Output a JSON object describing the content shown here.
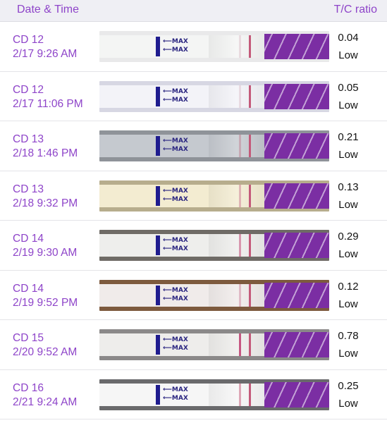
{
  "header": {
    "date_time": "Date & Time",
    "tc_ratio": "T/C ratio"
  },
  "max_label": "⟵MAX",
  "colors": {
    "accent": "#8e44c9",
    "handle": "#7b2ea3",
    "bar": "#1f1c8f"
  },
  "rows": [
    {
      "cd": "CD 12",
      "datetime": "2/17 9:26 AM",
      "ratio": "0.04",
      "level": "Low",
      "bg": "#e9e9ea",
      "body": "#f4f5f4",
      "t": "rgba(200,140,160,0.25)"
    },
    {
      "cd": "CD 12",
      "datetime": "2/17 11:06 PM",
      "ratio": "0.05",
      "level": "Low",
      "bg": "#d7d7e3",
      "body": "#f3f3f8",
      "t": "rgba(200,140,160,0.25)"
    },
    {
      "cd": "CD 13",
      "datetime": "2/18 1:46 PM",
      "ratio": "0.21",
      "level": "Low",
      "bg": "#8f9399",
      "body": "#c5c9cf",
      "t": "rgba(190,120,140,0.45)"
    },
    {
      "cd": "CD 13",
      "datetime": "2/18 9:32 PM",
      "ratio": "0.13",
      "level": "Low",
      "bg": "#b7ad8d",
      "body": "#f3ecd1",
      "t": "rgba(200,110,140,0.45)"
    },
    {
      "cd": "CD 14",
      "datetime": "2/19 9:30 AM",
      "ratio": "0.29",
      "level": "Low",
      "bg": "#6f6b66",
      "body": "#eeeeec",
      "t": "rgba(200,90,130,0.6)"
    },
    {
      "cd": "CD 14",
      "datetime": "2/19 9:52 PM",
      "ratio": "0.12",
      "level": "Low",
      "bg": "#7d5a3e",
      "body": "#f0ebea",
      "t": "rgba(200,110,140,0.4)"
    },
    {
      "cd": "CD 15",
      "datetime": "2/20 9:52 AM",
      "ratio": "0.78",
      "level": "Low",
      "bg": "#8b8989",
      "body": "#eeedeb",
      "t": "rgba(190,60,110,0.85)"
    },
    {
      "cd": "CD 16",
      "datetime": "2/21 9:24 AM",
      "ratio": "0.25",
      "level": "Low",
      "bg": "#6a6a6c",
      "body": "#f6f6f6",
      "t": "rgba(200,100,130,0.55)"
    }
  ]
}
